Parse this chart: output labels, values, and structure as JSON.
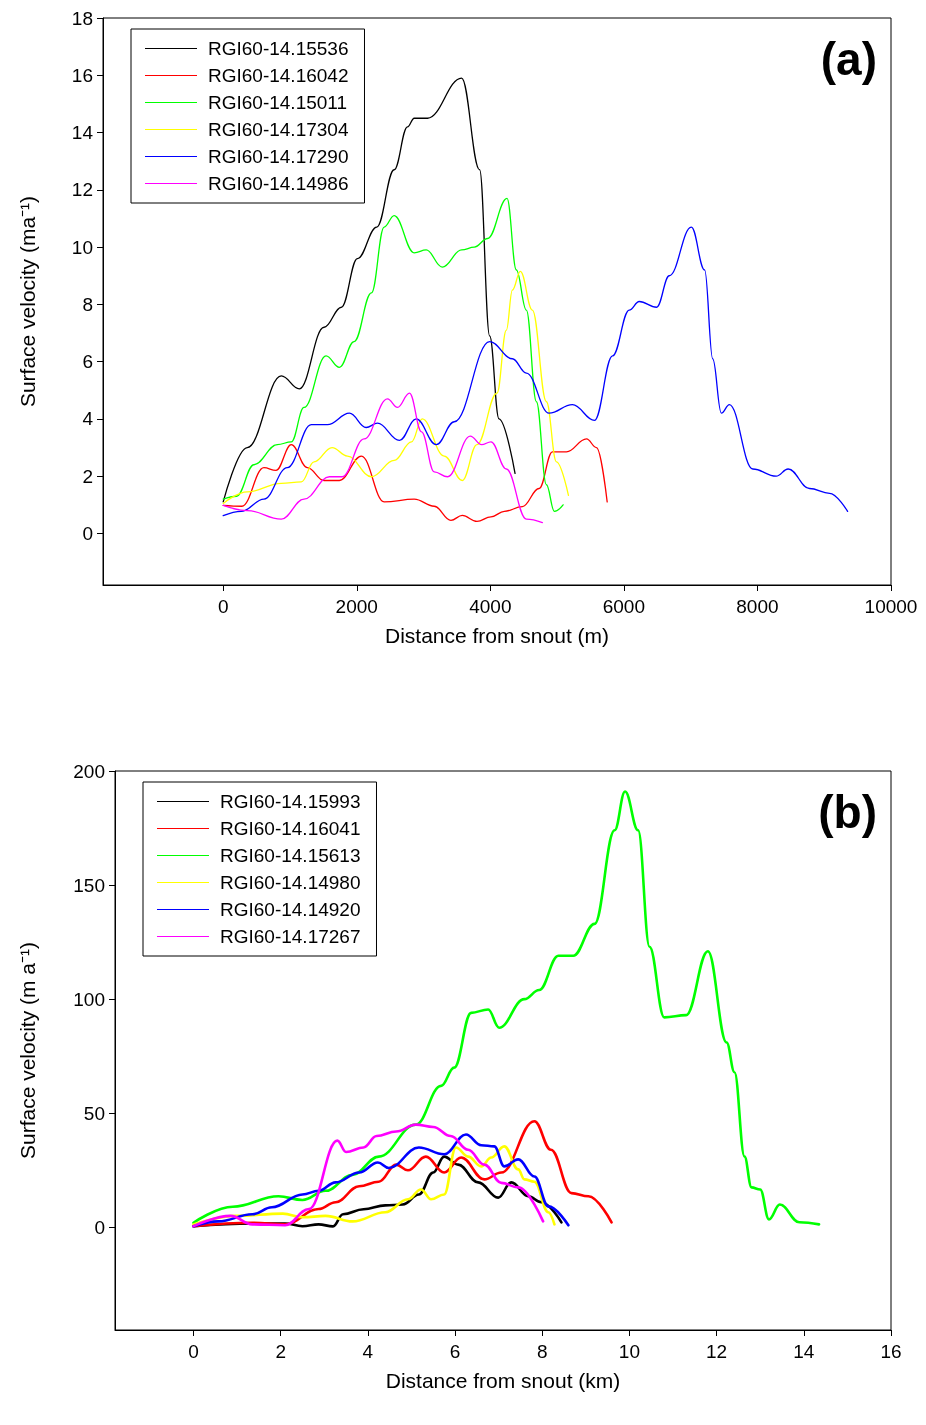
{
  "chart_data": [
    {
      "type": "line",
      "xlabel": "Distance from snout (m)",
      "ylabel": "Surface velocity (ma⁻¹)",
      "annotations": [
        "(a)"
      ],
      "xlim": [
        -1800,
        10000
      ],
      "xticks": [
        0,
        2000,
        4000,
        6000,
        8000,
        10000
      ],
      "ylim": [
        -1.8,
        18
      ],
      "yticks": [
        0,
        2,
        4,
        6,
        8,
        10,
        12,
        14,
        16,
        18
      ],
      "legend": "top left",
      "grid": false,
      "marker": "none",
      "line_style": "solid",
      "series": [
        {
          "name": "RGI60-14.15536",
          "color": "#000000",
          "x": [
            0,
            360,
            870,
            1140,
            1510,
            1770,
            2010,
            2300,
            2560,
            2760,
            2860,
            3060,
            3570,
            3840,
            3990,
            4130,
            4370
          ],
          "values": [
            1.1,
            3.0,
            5.5,
            5.05,
            7.2,
            7.9,
            9.6,
            10.7,
            12.7,
            14.2,
            14.5,
            14.5,
            15.9,
            12.7,
            6.9,
            4.0,
            2.1
          ]
        },
        {
          "name": "RGI60-14.16042",
          "color": "#ff0000",
          "x": [
            0,
            280,
            610,
            790,
            1020,
            1260,
            1510,
            1740,
            2070,
            2410,
            2860,
            3160,
            3410,
            3580,
            3800,
            4010,
            4210,
            4480,
            4730,
            4930,
            5140,
            5440,
            5590,
            5750
          ],
          "values": [
            0.98,
            0.95,
            2.3,
            2.2,
            3.1,
            2.3,
            1.85,
            1.85,
            2.7,
            1.1,
            1.2,
            0.95,
            0.46,
            0.63,
            0.42,
            0.58,
            0.77,
            0.94,
            1.57,
            2.85,
            2.85,
            3.3,
            3.0,
            1.1
          ]
        },
        {
          "name": "RGI60-14.15011",
          "color": "#00ff00",
          "x": [
            0,
            200,
            460,
            810,
            1020,
            1210,
            1540,
            1740,
            1960,
            2220,
            2410,
            2560,
            2860,
            3040,
            3280,
            3570,
            3760,
            3960,
            4250,
            4390,
            4540,
            4690,
            4840,
            4960,
            5090
          ],
          "values": [
            1.2,
            1.3,
            2.4,
            3.1,
            3.2,
            4.4,
            6.2,
            5.8,
            6.7,
            8.4,
            10.7,
            11.1,
            9.8,
            9.9,
            9.3,
            9.9,
            10.0,
            10.3,
            11.7,
            9.2,
            7.8,
            4.6,
            1.7,
            0.77,
            1.0
          ]
        },
        {
          "name": "RGI60-14.17304",
          "color": "#ffff00",
          "x": [
            0,
            360,
            870,
            1170,
            1360,
            1630,
            1860,
            2220,
            2560,
            2820,
            2980,
            3310,
            3580,
            3800,
            4100,
            4240,
            4330,
            4450,
            4630,
            4840,
            4990,
            5170
          ],
          "values": [
            1.05,
            1.45,
            1.75,
            1.8,
            2.5,
            3.0,
            2.7,
            1.98,
            2.55,
            3.2,
            4.0,
            2.7,
            1.85,
            3.1,
            4.9,
            7.1,
            8.5,
            9.15,
            7.8,
            4.6,
            2.5,
            1.33
          ]
        },
        {
          "name": "RGI60-14.17290",
          "color": "#0000ff",
          "x": [
            0,
            270,
            610,
            960,
            1320,
            1560,
            1890,
            2140,
            2310,
            2640,
            2890,
            3190,
            3460,
            3990,
            4330,
            4540,
            4880,
            5230,
            5560,
            5830,
            6080,
            6230,
            6490,
            6680,
            7010,
            7210,
            7330,
            7460,
            7580,
            7930,
            8280,
            8460,
            8780,
            9080,
            9350
          ],
          "values": [
            0.62,
            0.77,
            1.2,
            2.3,
            3.8,
            3.8,
            4.2,
            3.7,
            3.85,
            3.25,
            4.0,
            3.1,
            3.9,
            6.7,
            6.1,
            5.6,
            4.2,
            4.5,
            3.95,
            6.2,
            7.8,
            8.1,
            7.9,
            9.0,
            10.7,
            9.2,
            6.1,
            4.2,
            4.5,
            2.25,
            2.0,
            2.25,
            1.57,
            1.4,
            0.77
          ]
        },
        {
          "name": "RGI60-14.14986",
          "color": "#ff00ff",
          "x": [
            0,
            360,
            870,
            1210,
            1590,
            1780,
            2110,
            2460,
            2610,
            2790,
            2970,
            3160,
            3360,
            3700,
            3870,
            4010,
            4240,
            4540,
            4780
          ],
          "values": [
            0.98,
            0.8,
            0.5,
            1.2,
            1.98,
            1.98,
            3.3,
            4.7,
            4.4,
            4.9,
            3.55,
            2.15,
            1.98,
            3.4,
            3.1,
            3.2,
            2.25,
            0.5,
            0.38
          ]
        }
      ]
    },
    {
      "type": "line",
      "xlabel": "Distance from snout (km)",
      "ylabel": "Surface velocity (m a⁻¹)",
      "annotations": [
        "(b)"
      ],
      "xlim": [
        -1.8,
        16
      ],
      "xticks": [
        0,
        2,
        4,
        6,
        8,
        10,
        12,
        14,
        16
      ],
      "ylim": [
        -45,
        200
      ],
      "yticks": [
        0,
        50,
        100,
        150,
        200
      ],
      "legend": "top left",
      "grid": false,
      "marker": "none",
      "line_style": "solid",
      "series": [
        {
          "name": "RGI60-14.15993",
          "color": "#000000",
          "x": [
            0,
            1.35,
            2.1,
            2.5,
            2.87,
            3.2,
            3.43,
            3.9,
            4.4,
            4.8,
            5.17,
            5.5,
            5.75,
            6.07,
            6.53,
            6.99,
            7.29,
            7.68,
            7.98,
            8.44
          ],
          "values": [
            0.5,
            1.7,
            1.7,
            0.5,
            1.3,
            0.4,
            5.7,
            7.9,
            9.6,
            10,
            14.4,
            24,
            31,
            27.5,
            19.7,
            13,
            19.7,
            13.6,
            11,
            2.2
          ]
        },
        {
          "name": "RGI60-14.16041",
          "color": "#ff0000",
          "x": [
            0,
            1.35,
            2.1,
            2.87,
            3.26,
            3.8,
            4.25,
            4.65,
            4.92,
            5.33,
            5.75,
            6.14,
            6.67,
            7.06,
            7.82,
            8.2,
            8.67,
            9.06,
            9.59
          ],
          "values": [
            0.5,
            2,
            1.3,
            8,
            11,
            18,
            20,
            27.5,
            25,
            31,
            24,
            30.6,
            21,
            24,
            46.5,
            34,
            15,
            13.6,
            2.2
          ]
        },
        {
          "name": "RGI60-14.15613",
          "color": "#00ff00",
          "x": [
            0,
            0.9,
            1.95,
            2.5,
            3.03,
            3.65,
            4.25,
            5.1,
            5.68,
            5.98,
            6.37,
            6.76,
            7.01,
            7.59,
            7.93,
            8.37,
            8.71,
            9.2,
            9.66,
            9.9,
            10.2,
            10.46,
            10.8,
            11.3,
            11.8,
            12.23,
            12.41,
            12.64,
            12.8,
            13.0,
            13.2,
            13.45,
            13.9,
            14.35
          ],
          "values": [
            2,
            9,
            13.6,
            12,
            16,
            23,
            31,
            45,
            62,
            70,
            94,
            95.5,
            87.5,
            100,
            104,
            119,
            119,
            133,
            174,
            191,
            174,
            123,
            92,
            93,
            121,
            81,
            68,
            31,
            17.5,
            16.6,
            3.5,
            10,
            2.2,
            1.3
          ]
        },
        {
          "name": "RGI60-14.14980",
          "color": "#ffff00",
          "x": [
            0,
            0.97,
            2.05,
            2.5,
            3.03,
            3.65,
            4.4,
            4.92,
            5.22,
            5.45,
            5.75,
            6.02,
            6.3,
            6.6,
            6.83,
            7.13,
            7.45,
            7.59,
            7.82,
            8.14,
            8.28
          ],
          "values": [
            1.3,
            5,
            6,
            4.4,
            5,
            2.6,
            6.6,
            12.3,
            16.6,
            12.3,
            14.4,
            35,
            31,
            26.7,
            30.6,
            35.5,
            25.4,
            21,
            20,
            6.6,
            1.3
          ]
        },
        {
          "name": "RGI60-14.14920",
          "color": "#0000ff",
          "x": [
            0,
            0.57,
            1.35,
            1.8,
            2.5,
            2.87,
            3.26,
            3.8,
            4.23,
            4.48,
            5.17,
            5.75,
            6.25,
            6.6,
            6.9,
            7.13,
            7.45,
            7.82,
            8.14,
            8.6
          ],
          "values": [
            0.5,
            2.6,
            5.7,
            8.8,
            14.4,
            16,
            19.7,
            24,
            28.4,
            26,
            35,
            32,
            40.7,
            36,
            35.5,
            26.7,
            29.8,
            22.3,
            9.2,
            0.9
          ]
        },
        {
          "name": "RGI60-14.17267",
          "color": "#ff00ff",
          "x": [
            0,
            0.85,
            1.35,
            2.1,
            2.65,
            3.3,
            3.5,
            3.9,
            4.2,
            4.65,
            5.1,
            5.5,
            5.9,
            6.3,
            6.67,
            7.06,
            7.45,
            8.02
          ],
          "values": [
            0.5,
            5,
            1.3,
            0.9,
            8,
            38,
            33,
            35,
            40,
            42,
            45,
            44,
            40,
            34,
            27.5,
            19.5,
            17.5,
            2.6
          ]
        }
      ]
    }
  ]
}
